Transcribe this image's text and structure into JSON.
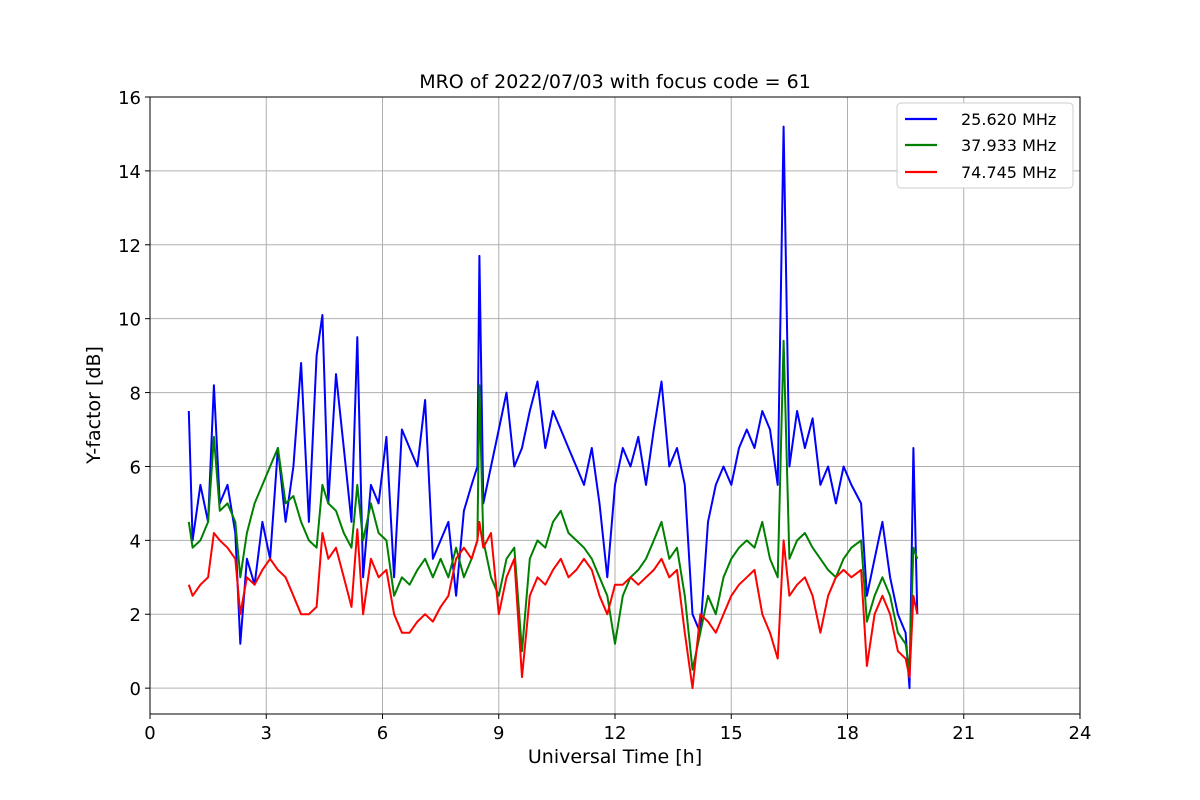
{
  "chart_data": {
    "type": "line",
    "title": "MRO of 2022/07/03 with focus code = 61",
    "xlabel": "Universal Time [h]",
    "ylabel": "Y-factor [dB]",
    "xlim": [
      0,
      24
    ],
    "ylim": [
      -0.7,
      16
    ],
    "xticks": [
      0,
      3,
      6,
      9,
      12,
      15,
      18,
      21,
      24
    ],
    "yticks": [
      0,
      2,
      4,
      6,
      8,
      10,
      12,
      14,
      16
    ],
    "grid": true,
    "legend_position": "top-right",
    "series": [
      {
        "name": "25.620 MHz",
        "color": "#0000ff",
        "x": [
          1.0,
          1.1,
          1.3,
          1.5,
          1.65,
          1.8,
          2.0,
          2.2,
          2.33,
          2.5,
          2.7,
          2.9,
          3.1,
          3.3,
          3.5,
          3.7,
          3.9,
          4.1,
          4.3,
          4.45,
          4.6,
          4.8,
          5.0,
          5.2,
          5.35,
          5.5,
          5.7,
          5.9,
          6.1,
          6.3,
          6.5,
          6.7,
          6.9,
          7.1,
          7.3,
          7.5,
          7.7,
          7.9,
          8.1,
          8.3,
          8.45,
          8.5,
          8.6,
          8.8,
          9.0,
          9.2,
          9.4,
          9.6,
          9.8,
          10.0,
          10.2,
          10.4,
          10.6,
          10.8,
          11.0,
          11.2,
          11.4,
          11.6,
          11.8,
          12.0,
          12.2,
          12.4,
          12.6,
          12.8,
          13.0,
          13.2,
          13.4,
          13.6,
          13.8,
          14.0,
          14.2,
          14.4,
          14.6,
          14.8,
          15.0,
          15.2,
          15.4,
          15.6,
          15.8,
          16.0,
          16.2,
          16.35,
          16.5,
          16.7,
          16.9,
          17.1,
          17.3,
          17.5,
          17.7,
          17.9,
          18.1,
          18.35,
          18.5,
          18.7,
          18.9,
          19.1,
          19.3,
          19.5,
          19.6,
          19.7,
          19.8
        ],
        "y": [
          7.5,
          4.0,
          5.5,
          4.5,
          8.2,
          5.0,
          5.5,
          4.2,
          1.2,
          3.5,
          2.8,
          4.5,
          3.5,
          6.5,
          4.5,
          6.0,
          8.8,
          4.5,
          9.0,
          10.1,
          5.0,
          8.5,
          6.5,
          4.5,
          9.5,
          3.0,
          5.5,
          5.0,
          6.8,
          3.0,
          7.0,
          6.5,
          6.0,
          7.8,
          3.5,
          4.0,
          4.5,
          2.5,
          4.8,
          5.5,
          6.0,
          11.7,
          5.0,
          6.0,
          7.0,
          8.0,
          6.0,
          6.5,
          7.5,
          8.3,
          6.5,
          7.5,
          7.0,
          6.5,
          6.0,
          5.5,
          6.5,
          5.0,
          3.0,
          5.5,
          6.5,
          6.0,
          6.8,
          5.5,
          7.0,
          8.3,
          6.0,
          6.5,
          5.5,
          2.0,
          1.5,
          4.5,
          5.5,
          6.0,
          5.5,
          6.5,
          7.0,
          6.5,
          7.5,
          7.0,
          5.5,
          15.2,
          6.0,
          7.5,
          6.5,
          7.3,
          5.5,
          6.0,
          5.0,
          6.0,
          5.5,
          5.0,
          2.5,
          3.5,
          4.5,
          3.0,
          2.0,
          1.5,
          0.0,
          6.5,
          2.0
        ]
      },
      {
        "name": "37.933 MHz",
        "color": "#008000",
        "x": [
          1.0,
          1.1,
          1.3,
          1.5,
          1.65,
          1.8,
          2.0,
          2.2,
          2.33,
          2.5,
          2.7,
          2.9,
          3.1,
          3.3,
          3.5,
          3.7,
          3.9,
          4.1,
          4.3,
          4.45,
          4.6,
          4.8,
          5.0,
          5.2,
          5.35,
          5.5,
          5.7,
          5.9,
          6.1,
          6.3,
          6.5,
          6.7,
          6.9,
          7.1,
          7.3,
          7.5,
          7.7,
          7.9,
          8.1,
          8.3,
          8.45,
          8.5,
          8.6,
          8.8,
          9.0,
          9.2,
          9.4,
          9.6,
          9.8,
          10.0,
          10.2,
          10.4,
          10.6,
          10.8,
          11.0,
          11.2,
          11.4,
          11.6,
          11.8,
          12.0,
          12.2,
          12.4,
          12.6,
          12.8,
          13.0,
          13.2,
          13.4,
          13.6,
          13.8,
          14.0,
          14.2,
          14.4,
          14.6,
          14.8,
          15.0,
          15.2,
          15.4,
          15.6,
          15.8,
          16.0,
          16.2,
          16.35,
          16.5,
          16.7,
          16.9,
          17.1,
          17.3,
          17.5,
          17.7,
          17.9,
          18.1,
          18.35,
          18.5,
          18.7,
          18.9,
          19.1,
          19.3,
          19.5,
          19.6,
          19.7,
          19.8
        ],
        "y": [
          4.5,
          3.8,
          4.0,
          4.5,
          6.8,
          4.8,
          5.0,
          4.5,
          3.0,
          4.2,
          5.0,
          5.5,
          6.0,
          6.5,
          5.0,
          5.2,
          4.5,
          4.0,
          3.8,
          5.5,
          5.0,
          4.8,
          4.2,
          3.8,
          5.5,
          4.0,
          5.0,
          4.2,
          4.0,
          2.5,
          3.0,
          2.8,
          3.2,
          3.5,
          3.0,
          3.5,
          3.0,
          3.8,
          3.0,
          3.5,
          4.0,
          8.2,
          4.0,
          3.0,
          2.5,
          3.5,
          3.8,
          1.0,
          3.5,
          4.0,
          3.8,
          4.5,
          4.8,
          4.2,
          4.0,
          3.8,
          3.5,
          3.0,
          2.5,
          1.2,
          2.5,
          3.0,
          3.2,
          3.5,
          4.0,
          4.5,
          3.5,
          3.8,
          2.5,
          0.5,
          1.5,
          2.5,
          2.0,
          3.0,
          3.5,
          3.8,
          4.0,
          3.8,
          4.5,
          3.5,
          3.0,
          9.4,
          3.5,
          4.0,
          4.2,
          3.8,
          3.5,
          3.2,
          3.0,
          3.5,
          3.8,
          4.0,
          1.8,
          2.5,
          3.0,
          2.5,
          1.5,
          1.2,
          0.5,
          3.8,
          3.5
        ]
      },
      {
        "name": "74.745 MHz",
        "color": "#ff0000",
        "x": [
          1.0,
          1.1,
          1.3,
          1.5,
          1.65,
          1.8,
          2.0,
          2.2,
          2.33,
          2.5,
          2.7,
          2.9,
          3.1,
          3.3,
          3.5,
          3.7,
          3.9,
          4.1,
          4.3,
          4.45,
          4.6,
          4.8,
          5.0,
          5.2,
          5.35,
          5.5,
          5.7,
          5.9,
          6.1,
          6.3,
          6.5,
          6.7,
          6.9,
          7.1,
          7.3,
          7.5,
          7.7,
          7.9,
          8.1,
          8.3,
          8.45,
          8.5,
          8.6,
          8.8,
          9.0,
          9.2,
          9.4,
          9.6,
          9.8,
          10.0,
          10.2,
          10.4,
          10.6,
          10.8,
          11.0,
          11.2,
          11.4,
          11.6,
          11.8,
          12.0,
          12.2,
          12.4,
          12.6,
          12.8,
          13.0,
          13.2,
          13.4,
          13.6,
          13.8,
          14.0,
          14.2,
          14.4,
          14.6,
          14.8,
          15.0,
          15.2,
          15.4,
          15.6,
          15.8,
          16.0,
          16.2,
          16.35,
          16.5,
          16.7,
          16.9,
          17.1,
          17.3,
          17.5,
          17.7,
          17.9,
          18.1,
          18.35,
          18.5,
          18.7,
          18.9,
          19.1,
          19.3,
          19.5,
          19.6,
          19.7,
          19.8
        ],
        "y": [
          2.8,
          2.5,
          2.8,
          3.0,
          4.2,
          4.0,
          3.8,
          3.5,
          2.0,
          3.0,
          2.8,
          3.2,
          3.5,
          3.2,
          3.0,
          2.5,
          2.0,
          2.0,
          2.2,
          4.2,
          3.5,
          3.8,
          3.0,
          2.2,
          4.3,
          2.0,
          3.5,
          3.0,
          3.2,
          2.0,
          1.5,
          1.5,
          1.8,
          2.0,
          1.8,
          2.2,
          2.5,
          3.5,
          3.8,
          3.5,
          4.0,
          4.5,
          3.8,
          4.2,
          2.0,
          3.0,
          3.5,
          0.3,
          2.5,
          3.0,
          2.8,
          3.2,
          3.5,
          3.0,
          3.2,
          3.5,
          3.2,
          2.5,
          2.0,
          2.8,
          2.8,
          3.0,
          2.8,
          3.0,
          3.2,
          3.5,
          3.0,
          3.2,
          1.5,
          0.0,
          2.0,
          1.8,
          1.5,
          2.0,
          2.5,
          2.8,
          3.0,
          3.2,
          2.0,
          1.5,
          0.8,
          4.0,
          2.5,
          2.8,
          3.0,
          2.5,
          1.5,
          2.5,
          3.0,
          3.2,
          3.0,
          3.2,
          0.6,
          2.0,
          2.5,
          2.0,
          1.0,
          0.8,
          0.3,
          2.5,
          2.0
        ]
      }
    ]
  }
}
